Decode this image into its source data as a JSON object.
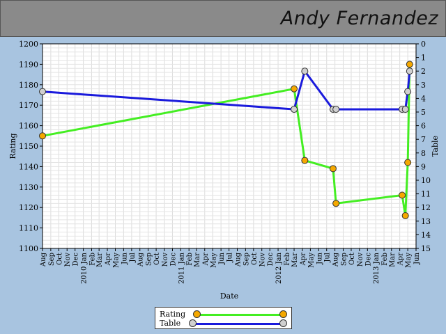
{
  "header": {
    "player_name": "Andy Fernandez"
  },
  "colors": {
    "background": "#a8c4e0",
    "header": "#8a8a8a",
    "rating_line": "#44ee22",
    "rating_marker": "#f5a800",
    "table_line": "#1a1adc",
    "table_marker": "#d0d0d0"
  },
  "chart_data": {
    "type": "line",
    "xlabel": "Date",
    "ylabel": "Rating",
    "y2label": "Table",
    "xlim": [
      "2009-08-01",
      "2013-06-01"
    ],
    "ylim": [
      1100,
      1200
    ],
    "y2lim": [
      15,
      0
    ],
    "y_ticks": [
      1100,
      1110,
      1120,
      1130,
      1140,
      1150,
      1160,
      1170,
      1180,
      1190,
      1200
    ],
    "y2_ticks": [
      0,
      1,
      2,
      3,
      4,
      5,
      6,
      7,
      8,
      9,
      10,
      11,
      12,
      13,
      14,
      15
    ],
    "x_tick_labels": [
      {
        "date": "2009-08-01",
        "label": "Aug"
      },
      {
        "date": "2009-09-01",
        "label": "Sep"
      },
      {
        "date": "2009-10-01",
        "label": "Oct"
      },
      {
        "date": "2009-11-01",
        "label": "Nov"
      },
      {
        "date": "2009-12-01",
        "label": "Dec"
      },
      {
        "date": "2010-01-01",
        "label": "2010 Jan"
      },
      {
        "date": "2010-02-01",
        "label": "Feb"
      },
      {
        "date": "2010-03-01",
        "label": "Mar"
      },
      {
        "date": "2010-04-01",
        "label": "Apr"
      },
      {
        "date": "2010-05-01",
        "label": "May"
      },
      {
        "date": "2010-06-01",
        "label": "Jun"
      },
      {
        "date": "2010-07-01",
        "label": "Jul"
      },
      {
        "date": "2010-08-01",
        "label": "Aug"
      },
      {
        "date": "2010-09-01",
        "label": "Sep"
      },
      {
        "date": "2010-10-01",
        "label": "Oct"
      },
      {
        "date": "2010-11-01",
        "label": "Nov"
      },
      {
        "date": "2010-12-01",
        "label": "Dec"
      },
      {
        "date": "2011-01-01",
        "label": "2011 Jan"
      },
      {
        "date": "2011-02-01",
        "label": "Feb"
      },
      {
        "date": "2011-03-01",
        "label": "Mar"
      },
      {
        "date": "2011-04-01",
        "label": "Apr"
      },
      {
        "date": "2011-05-01",
        "label": "May"
      },
      {
        "date": "2011-06-01",
        "label": "Jun"
      },
      {
        "date": "2011-07-01",
        "label": "Jul"
      },
      {
        "date": "2011-08-01",
        "label": "Aug"
      },
      {
        "date": "2011-09-01",
        "label": "Sep"
      },
      {
        "date": "2011-10-01",
        "label": "Oct"
      },
      {
        "date": "2011-11-01",
        "label": "Nov"
      },
      {
        "date": "2011-12-01",
        "label": "Dec"
      },
      {
        "date": "2012-01-01",
        "label": "2012 Jan"
      },
      {
        "date": "2012-02-01",
        "label": "Feb"
      },
      {
        "date": "2012-03-01",
        "label": "Mar"
      },
      {
        "date": "2012-04-01",
        "label": "Apr"
      },
      {
        "date": "2012-05-01",
        "label": "May"
      },
      {
        "date": "2012-06-01",
        "label": "Jun"
      },
      {
        "date": "2012-07-01",
        "label": "Jul"
      },
      {
        "date": "2012-08-01",
        "label": "Aug"
      },
      {
        "date": "2012-09-01",
        "label": "Sep"
      },
      {
        "date": "2012-10-01",
        "label": "Oct"
      },
      {
        "date": "2012-11-01",
        "label": "Nov"
      },
      {
        "date": "2012-12-01",
        "label": "Dec"
      },
      {
        "date": "2013-01-01",
        "label": "2013 Jan"
      },
      {
        "date": "2013-02-01",
        "label": "Feb"
      },
      {
        "date": "2013-03-01",
        "label": "Mar"
      },
      {
        "date": "2013-04-01",
        "label": "Apr"
      },
      {
        "date": "2013-05-01",
        "label": "May"
      },
      {
        "date": "2013-06-01",
        "label": "Jun"
      }
    ],
    "grid": true,
    "legend_position": "bottom-center",
    "series": [
      {
        "name": "Rating",
        "axis": "left",
        "points": [
          {
            "x": "2009-08-01",
            "y": 1155
          },
          {
            "x": "2012-03-01",
            "y": 1178
          },
          {
            "x": "2012-04-10",
            "y": 1143
          },
          {
            "x": "2012-07-25",
            "y": 1139
          },
          {
            "x": "2012-08-05",
            "y": 1122
          },
          {
            "x": "2013-04-10",
            "y": 1126
          },
          {
            "x": "2013-04-22",
            "y": 1116
          },
          {
            "x": "2013-05-01",
            "y": 1142
          },
          {
            "x": "2013-05-08",
            "y": 1190
          }
        ]
      },
      {
        "name": "Table",
        "axis": "right",
        "points": [
          {
            "x": "2009-08-01",
            "y": 3.5
          },
          {
            "x": "2012-03-01",
            "y": 4.8
          },
          {
            "x": "2012-04-10",
            "y": 2
          },
          {
            "x": "2012-07-25",
            "y": 4.8
          },
          {
            "x": "2012-08-05",
            "y": 4.8
          },
          {
            "x": "2013-04-10",
            "y": 4.8
          },
          {
            "x": "2013-04-22",
            "y": 4.8
          },
          {
            "x": "2013-05-01",
            "y": 3.5
          },
          {
            "x": "2013-05-08",
            "y": 2
          }
        ]
      }
    ]
  }
}
